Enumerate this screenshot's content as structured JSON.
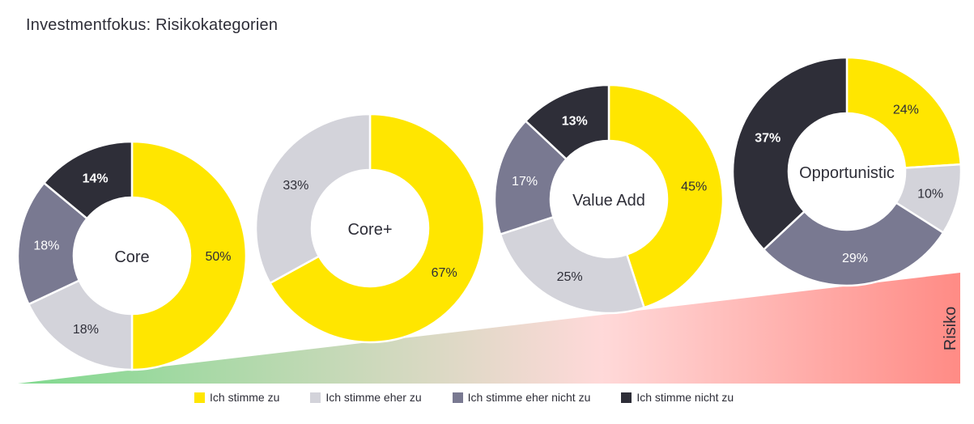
{
  "title": "Investmentfokus: Risikokategorien",
  "risk_label": "Risiko",
  "colors": {
    "stimme_zu": "#ffe600",
    "eher_zu": "#d3d3da",
    "eher_nicht_zu": "#797991",
    "nicht_zu": "#2e2e38",
    "ramp_start": "#7fd98e",
    "ramp_mid": "#ffd9d9",
    "ramp_end": "#ff8b85"
  },
  "legend": [
    {
      "label": "Ich stimme zu",
      "color": "#ffe600"
    },
    {
      "label": "Ich stimme eher zu",
      "color": "#d3d3da"
    },
    {
      "label": "Ich stimme eher nicht zu",
      "color": "#797991"
    },
    {
      "label": "Ich stimme nicht zu",
      "color": "#2e2e38"
    }
  ],
  "chart_data": {
    "type": "pie",
    "title": "Investmentfokus: Risikokategorien",
    "series_names": [
      "Ich stimme zu",
      "Ich stimme eher zu",
      "Ich stimme eher nicht zu",
      "Ich stimme nicht zu"
    ],
    "donuts": [
      {
        "label": "Core",
        "values": [
          50,
          18,
          18,
          14
        ],
        "value_labels": [
          "50%",
          "18%",
          "18%",
          "14%"
        ]
      },
      {
        "label": "Core+",
        "values": [
          67,
          33,
          0,
          0
        ],
        "value_labels": [
          "67%",
          "33%",
          "",
          ""
        ]
      },
      {
        "label": "Value Add",
        "values": [
          45,
          25,
          17,
          13
        ],
        "value_labels": [
          "45%",
          "25%",
          "17%",
          "13%"
        ]
      },
      {
        "label": "Opportunistic",
        "values": [
          24,
          10,
          29,
          37
        ],
        "value_labels": [
          "24%",
          "10%",
          "29%",
          "37%"
        ]
      }
    ]
  }
}
